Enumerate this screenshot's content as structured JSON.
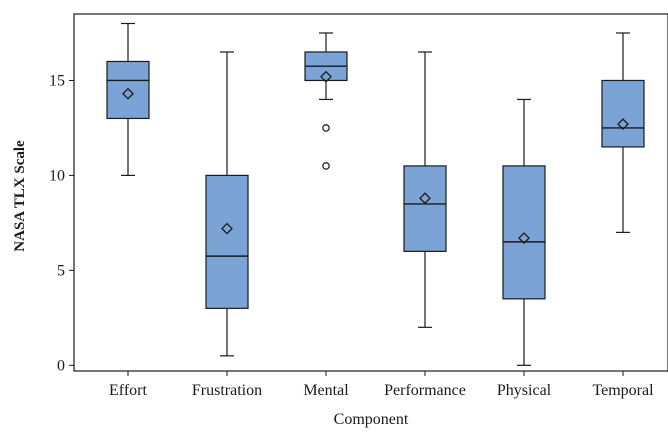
{
  "chart_data": {
    "type": "boxplot",
    "title": "",
    "xlabel": "Component",
    "ylabel": "NASA TLX Scale",
    "ylim": [
      -0.3,
      18.5
    ],
    "yticks": [
      0,
      5,
      10,
      15
    ],
    "grid": false,
    "legend": "none",
    "box_color": "#7ba3d6",
    "line_color": "#1a1a1a",
    "categories": [
      "Effort",
      "Frustration",
      "Mental",
      "Performance",
      "Physical",
      "Temporal"
    ],
    "boxes": [
      {
        "label": "Effort",
        "whisker_low": 10,
        "q1": 13,
        "median": 15,
        "q3": 16,
        "whisker_high": 18,
        "mean": 14.3,
        "outliers": []
      },
      {
        "label": "Frustration",
        "whisker_low": 0.5,
        "q1": 3,
        "median": 5.75,
        "q3": 10,
        "whisker_high": 16.5,
        "mean": 7.2,
        "outliers": []
      },
      {
        "label": "Mental",
        "whisker_low": 14,
        "q1": 15,
        "median": 15.75,
        "q3": 16.5,
        "whisker_high": 17.5,
        "mean": 15.2,
        "outliers": [
          12.5,
          10.5
        ]
      },
      {
        "label": "Performance",
        "whisker_low": 2,
        "q1": 6,
        "median": 8.5,
        "q3": 10.5,
        "whisker_high": 16.5,
        "mean": 8.8,
        "outliers": []
      },
      {
        "label": "Physical",
        "whisker_low": 0,
        "q1": 3.5,
        "median": 6.5,
        "q3": 10.5,
        "whisker_high": 14,
        "mean": 6.7,
        "outliers": []
      },
      {
        "label": "Temporal",
        "whisker_low": 7,
        "q1": 11.5,
        "median": 12.5,
        "q3": 15,
        "whisker_high": 17.5,
        "mean": 12.7,
        "outliers": []
      }
    ]
  }
}
